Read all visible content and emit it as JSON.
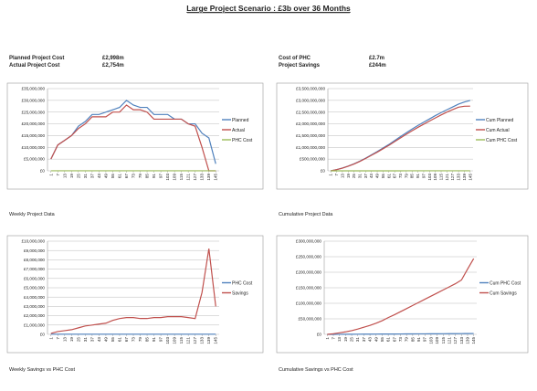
{
  "title": "Large Project Scenario : £3b over 36 Months",
  "summary": [
    {
      "label": "Planned Project Cost",
      "value": "£2,998m"
    },
    {
      "label": "Actual Project Cost",
      "value": "£2,754m"
    },
    {
      "label": "Cost of PHC",
      "value": "£2.7m"
    },
    {
      "label": "Project Savings",
      "value": "£244m"
    }
  ],
  "chart_data": [
    {
      "type": "line",
      "caption": "Weekly Project Data",
      "categories": [
        1,
        7,
        13,
        19,
        25,
        31,
        37,
        43,
        49,
        55,
        61,
        67,
        73,
        79,
        85,
        91,
        97,
        103,
        109,
        115,
        121,
        127,
        133,
        139,
        145
      ],
      "ylim": [
        0,
        35000000
      ],
      "yticks": [
        {
          "value": 0,
          "label": "£0"
        },
        {
          "value": 5000000,
          "label": "£5,000,000"
        },
        {
          "value": 10000000,
          "label": "£10,000,000"
        },
        {
          "value": 15000000,
          "label": "£15,000,000"
        },
        {
          "value": 20000000,
          "label": "£20,000,000"
        },
        {
          "value": 25000000,
          "label": "£25,000,000"
        },
        {
          "value": 30000000,
          "label": "£30,000,000"
        },
        {
          "value": 35000000,
          "label": "£35,000,000"
        }
      ],
      "grid": true,
      "series": [
        {
          "name": "Planned",
          "color": "#4f81bd",
          "values": [
            5000000,
            11000000,
            13000000,
            15000000,
            19000000,
            21000000,
            24000000,
            24000000,
            25000000,
            26000000,
            27000000,
            30000000,
            28000000,
            27000000,
            27000000,
            24000000,
            24000000,
            24000000,
            22000000,
            22000000,
            20000000,
            20000000,
            16000000,
            14000000,
            3000000
          ]
        },
        {
          "name": "Actual",
          "color": "#c0504d",
          "values": [
            5000000,
            11000000,
            13000000,
            15000000,
            18000000,
            20000000,
            23000000,
            23000000,
            23000000,
            25000000,
            25000000,
            28000000,
            26000000,
            26000000,
            25000000,
            22000000,
            22000000,
            22000000,
            22000000,
            22000000,
            20000000,
            19000000,
            10000000,
            0,
            0
          ]
        },
        {
          "name": "PHC Cost",
          "color": "#9bbb59",
          "values": [
            20000,
            20000,
            20000,
            20000,
            20000,
            20000,
            20000,
            20000,
            20000,
            20000,
            20000,
            20000,
            20000,
            20000,
            20000,
            20000,
            20000,
            20000,
            20000,
            20000,
            20000,
            20000,
            20000,
            20000,
            20000
          ]
        }
      ]
    },
    {
      "type": "line",
      "caption": "Cumulative Project Data",
      "categories": [
        1,
        7,
        13,
        19,
        25,
        31,
        37,
        43,
        49,
        55,
        61,
        67,
        73,
        79,
        85,
        91,
        97,
        103,
        109,
        115,
        121,
        127,
        133,
        139,
        145
      ],
      "ylim": [
        0,
        3500000000
      ],
      "yticks": [
        {
          "value": 0,
          "label": "£0"
        },
        {
          "value": 500000000,
          "label": "£500,000,000"
        },
        {
          "value": 1000000000,
          "label": "£1,000,000,000"
        },
        {
          "value": 1500000000,
          "label": "£1,500,000,000"
        },
        {
          "value": 2000000000,
          "label": "£2,000,000,000"
        },
        {
          "value": 2500000000,
          "label": "£2,500,000,000"
        },
        {
          "value": 3000000000,
          "label": "£3,000,000,000"
        },
        {
          "value": 3500000000,
          "label": "£3,500,000,000"
        }
      ],
      "grid": true,
      "series": [
        {
          "name": "Cum Planned",
          "color": "#4f81bd",
          "values": [
            0,
            50000000,
            120000000,
            200000000,
            300000000,
            410000000,
            540000000,
            680000000,
            820000000,
            970000000,
            1120000000,
            1290000000,
            1460000000,
            1620000000,
            1780000000,
            1930000000,
            2070000000,
            2210000000,
            2350000000,
            2480000000,
            2600000000,
            2720000000,
            2840000000,
            2930000000,
            2998000000
          ]
        },
        {
          "name": "Cum Actual",
          "color": "#c0504d",
          "values": [
            0,
            50000000,
            115000000,
            195000000,
            290000000,
            400000000,
            525000000,
            660000000,
            795000000,
            940000000,
            1085000000,
            1245000000,
            1400000000,
            1555000000,
            1705000000,
            1850000000,
            1985000000,
            2120000000,
            2250000000,
            2380000000,
            2500000000,
            2610000000,
            2710000000,
            2750000000,
            2754000000
          ]
        },
        {
          "name": "Cum PHC Cost",
          "color": "#9bbb59",
          "values": [
            0,
            100000,
            200000,
            300000,
            400000,
            500000,
            700000,
            800000,
            900000,
            1000000,
            1100000,
            1200000,
            1300000,
            1400000,
            1500000,
            1600000,
            1700000,
            1800000,
            1900000,
            2000000,
            2200000,
            2300000,
            2400000,
            2600000,
            2700000
          ]
        }
      ]
    },
    {
      "type": "line",
      "caption": "Weekly Savings vs PHC Cost",
      "categories": [
        1,
        7,
        13,
        19,
        25,
        31,
        37,
        43,
        49,
        55,
        61,
        67,
        73,
        79,
        85,
        91,
        97,
        103,
        109,
        115,
        121,
        127,
        133,
        139,
        145
      ],
      "ylim": [
        0,
        10000000
      ],
      "yticks": [
        {
          "value": 0,
          "label": "£0"
        },
        {
          "value": 1000000,
          "label": "£1,000,000"
        },
        {
          "value": 2000000,
          "label": "£2,000,000"
        },
        {
          "value": 3000000,
          "label": "£3,000,000"
        },
        {
          "value": 4000000,
          "label": "£4,000,000"
        },
        {
          "value": 5000000,
          "label": "£5,000,000"
        },
        {
          "value": 6000000,
          "label": "£6,000,000"
        },
        {
          "value": 7000000,
          "label": "£7,000,000"
        },
        {
          "value": 8000000,
          "label": "£8,000,000"
        },
        {
          "value": 9000000,
          "label": "£9,000,000"
        },
        {
          "value": 10000000,
          "label": "£10,000,000"
        }
      ],
      "grid": true,
      "series": [
        {
          "name": "PHC Cost",
          "color": "#4f81bd",
          "values": [
            20000,
            20000,
            20000,
            20000,
            20000,
            20000,
            20000,
            20000,
            20000,
            20000,
            20000,
            20000,
            20000,
            20000,
            20000,
            20000,
            20000,
            20000,
            20000,
            20000,
            20000,
            20000,
            20000,
            20000,
            20000
          ]
        },
        {
          "name": "Savings",
          "color": "#c0504d",
          "values": [
            100000,
            300000,
            400000,
            500000,
            700000,
            900000,
            1000000,
            1100000,
            1200000,
            1500000,
            1700000,
            1800000,
            1800000,
            1700000,
            1700000,
            1800000,
            1800000,
            1900000,
            1900000,
            1900000,
            1800000,
            1700000,
            4500000,
            9200000,
            3000000
          ]
        }
      ]
    },
    {
      "type": "line",
      "caption": "Cumulative Savings vs PHC Cost",
      "categories": [
        1,
        7,
        13,
        19,
        25,
        31,
        37,
        43,
        49,
        55,
        61,
        67,
        73,
        79,
        85,
        91,
        97,
        103,
        109,
        115,
        121,
        127,
        133,
        139,
        145
      ],
      "ylim": [
        0,
        300000000
      ],
      "yticks": [
        {
          "value": 0,
          "label": "£0"
        },
        {
          "value": 50000000,
          "label": "£50,000,000"
        },
        {
          "value": 100000000,
          "label": "£100,000,000"
        },
        {
          "value": 150000000,
          "label": "£150,000,000"
        },
        {
          "value": 200000000,
          "label": "£200,000,000"
        },
        {
          "value": 250000000,
          "label": "£250,000,000"
        },
        {
          "value": 300000000,
          "label": "£300,000,000"
        }
      ],
      "grid": true,
      "series": [
        {
          "name": "Cum PHC Cost",
          "color": "#4f81bd",
          "values": [
            0,
            100000,
            200000,
            300000,
            400000,
            500000,
            700000,
            800000,
            900000,
            1000000,
            1100000,
            1200000,
            1300000,
            1400000,
            1500000,
            1600000,
            1700000,
            1800000,
            1900000,
            2000000,
            2200000,
            2300000,
            2400000,
            2600000,
            2700000
          ]
        },
        {
          "name": "Cum Savings",
          "color": "#c0504d",
          "values": [
            0,
            2000000,
            5000000,
            8000000,
            12000000,
            17000000,
            23000000,
            29000000,
            36000000,
            44000000,
            54000000,
            63000000,
            73000000,
            83000000,
            93000000,
            103000000,
            113000000,
            123000000,
            133000000,
            143000000,
            153000000,
            163000000,
            175000000,
            210000000,
            244000000
          ]
        }
      ]
    }
  ]
}
